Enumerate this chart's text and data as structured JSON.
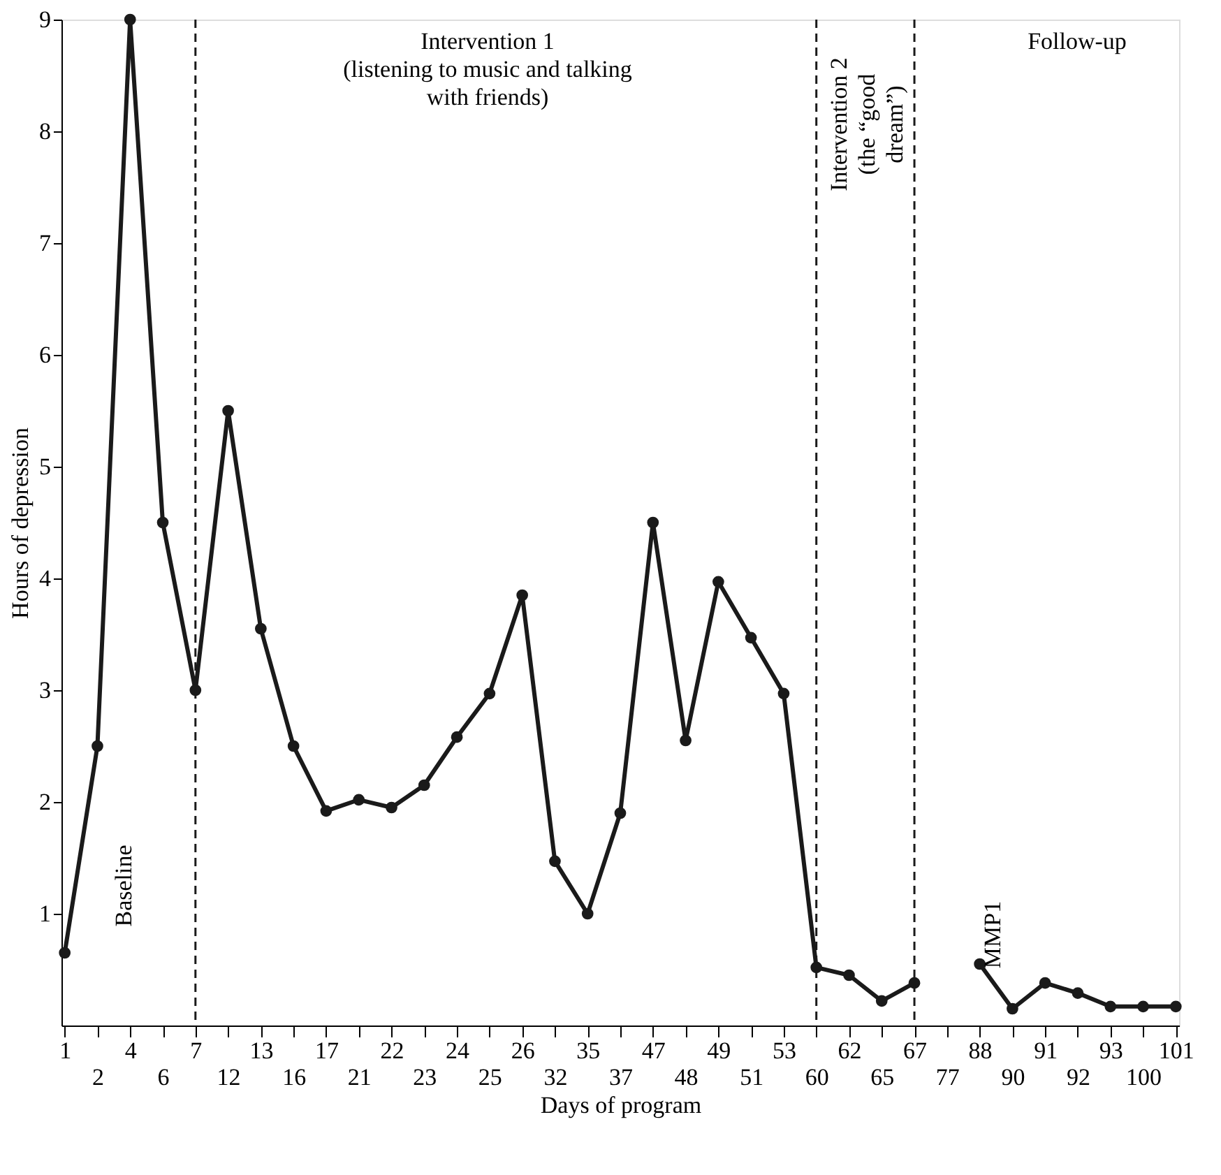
{
  "chart_data": {
    "type": "line",
    "xlabel": "Days of program",
    "ylabel": "Hours of depression",
    "categories": [
      "1",
      "2",
      "4",
      "6",
      "7",
      "12",
      "13",
      "16",
      "17",
      "21",
      "22",
      "23",
      "24",
      "25",
      "26",
      "32",
      "35",
      "37",
      "47",
      "48",
      "49",
      "51",
      "53",
      "60",
      "62",
      "65",
      "67",
      "77",
      "88",
      "90",
      "91",
      "92",
      "93",
      "100",
      "101"
    ],
    "series": [
      {
        "color": "#1a1a1a",
        "values": [
          0.65,
          2.5,
          9,
          4.5,
          3,
          5.5,
          3.55,
          2.5,
          1.92,
          2.02,
          1.95,
          2.15,
          2.58,
          2.97,
          3.85,
          1.47,
          1.0,
          1.9,
          4.5,
          2.55,
          3.97,
          3.47,
          2.97,
          0.52,
          0.45,
          0.22,
          0.38,
          null,
          0.55,
          0.15,
          0.38,
          0.29,
          0.17,
          0.17,
          0.17
        ]
      }
    ],
    "ylim": [
      0,
      9
    ],
    "yticks": [
      1,
      2,
      3,
      4,
      5,
      6,
      7,
      8,
      9
    ],
    "grid": false,
    "marker": "circle",
    "line_style": "solid",
    "ref_lines": [
      {
        "axis": "x",
        "value": "7",
        "line_style": "dashed",
        "color": "#1a1a1a"
      },
      {
        "axis": "x",
        "value": "60",
        "line_style": "dashed",
        "color": "#1a1a1a"
      },
      {
        "axis": "x",
        "value": "67",
        "line_style": "dashed",
        "color": "#1a1a1a"
      }
    ],
    "annotations": [
      "Baseline",
      "Intervention 1\n(listening to music and talking\nwith friends)",
      "Intervention 2\n(the “good\ndream”)",
      "Follow-up",
      "MMP1"
    ]
  }
}
